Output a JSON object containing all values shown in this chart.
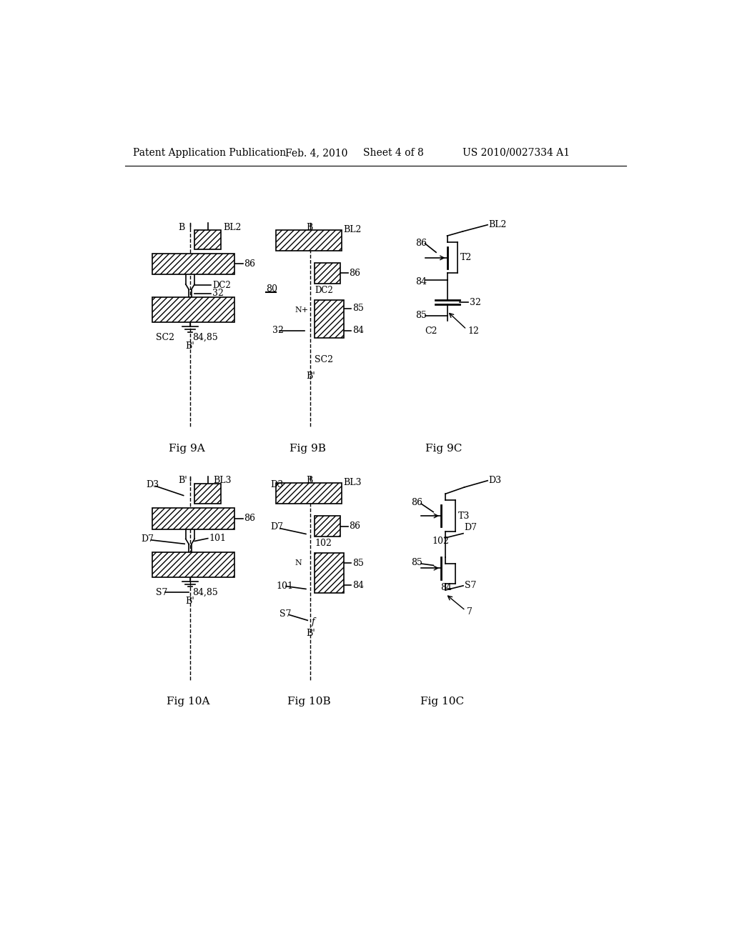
{
  "background_color": "#ffffff",
  "header_text": "Patent Application Publication",
  "header_date": "Feb. 4, 2010",
  "header_sheet": "Sheet 4 of 8",
  "header_patent": "US 2010/0027334 A1"
}
